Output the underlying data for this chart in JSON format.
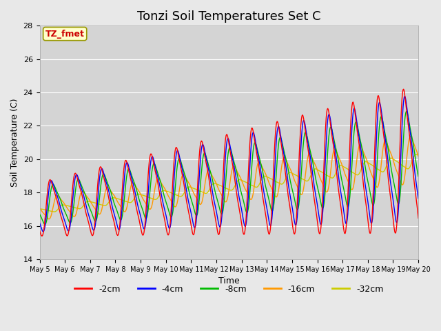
{
  "title": "Tonzi Soil Temperatures Set C",
  "xlabel": "Time",
  "ylabel": "Soil Temperature (C)",
  "ylim": [
    14,
    28
  ],
  "tick_labels": [
    "May 5",
    "May 6",
    "May 7",
    "May 8",
    "May 9",
    "May 10",
    "May 11",
    "May 12",
    "May 13",
    "May 14",
    "May 15",
    "May 16",
    "May 17",
    "May 18",
    "May 19",
    "May 20"
  ],
  "series_colors": [
    "#ff0000",
    "#0000ff",
    "#00bb00",
    "#ff9900",
    "#cccc00"
  ],
  "series_labels": [
    "-2cm",
    "-4cm",
    "-8cm",
    "-16cm",
    "-32cm"
  ],
  "legend_label": "TZ_fmet",
  "bg_color": "#e8e8e8",
  "plot_bg": "#d4d4d4",
  "title_fontsize": 13,
  "axis_fontsize": 9,
  "legend_fontsize": 9,
  "annotation_fontsize": 9
}
